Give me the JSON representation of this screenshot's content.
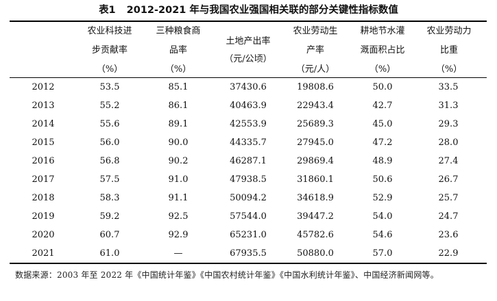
{
  "title": {
    "label": "表1",
    "text": "2012-2021 年与我国农业强国相关联的部分关键性指标数值"
  },
  "columns": [
    {
      "lines": [
        "",
        "",
        ""
      ]
    },
    {
      "lines": [
        "农业科技进",
        "步贡献率",
        "（%）"
      ]
    },
    {
      "lines": [
        "三种粮食商",
        "品率",
        "（%）"
      ]
    },
    {
      "lines": [
        "土地产出率",
        "（元/公顷）"
      ]
    },
    {
      "lines": [
        "农业劳动生",
        "产率",
        "（元/人）"
      ]
    },
    {
      "lines": [
        "耕地节水灌",
        "溉面积占比",
        "（%）"
      ]
    },
    {
      "lines": [
        "农业劳动力",
        "比重",
        "（%）"
      ]
    }
  ],
  "rows": [
    [
      "2012",
      "53.5",
      "85.1",
      "37430.6",
      "19808.6",
      "50.0",
      "33.5"
    ],
    [
      "2013",
      "55.2",
      "86.1",
      "40463.9",
      "22943.4",
      "42.7",
      "31.3"
    ],
    [
      "2014",
      "55.6",
      "89.1",
      "42553.9",
      "25689.3",
      "45.0",
      "29.3"
    ],
    [
      "2015",
      "56.0",
      "90.0",
      "44335.7",
      "27945.0",
      "47.2",
      "28.0"
    ],
    [
      "2016",
      "56.8",
      "90.2",
      "46287.1",
      "29869.4",
      "48.9",
      "27.4"
    ],
    [
      "2017",
      "57.5",
      "91.0",
      "47938.5",
      "31860.1",
      "50.6",
      "26.7"
    ],
    [
      "2018",
      "58.3",
      "91.1",
      "50094.2",
      "34618.9",
      "52.9",
      "25.7"
    ],
    [
      "2019",
      "59.2",
      "92.5",
      "57544.0",
      "39447.2",
      "54.0",
      "24.7"
    ],
    [
      "2020",
      "60.7",
      "92.9",
      "65231.0",
      "45782.6",
      "54.6",
      "23.6"
    ],
    [
      "2021",
      "61.0",
      "—",
      "67935.5",
      "50880.0",
      "57.0",
      "22.9"
    ]
  ],
  "source": "数据来源：2003 年至 2022 年《中国统计年鉴》《中国农村统计年鉴》《中国水利统计年鉴》、中国经济新闻网等。"
}
